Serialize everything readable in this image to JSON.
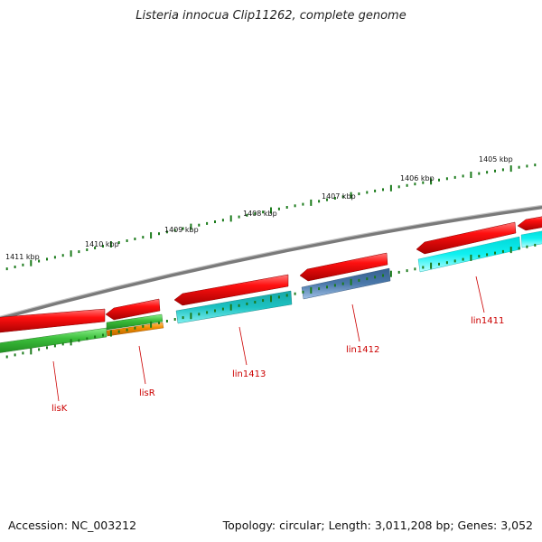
{
  "title": "Listeria innocua Clip11262, complete genome",
  "footer": {
    "accession": "Accession: NC_003212",
    "topology": "Topology: circular; Length: 3,011,208 bp; Genes: 3,052"
  },
  "ruler": {
    "labels": [
      "1405 kbp",
      "1406 kbp",
      "1407 kbp",
      "1408 kbp",
      "1409 kbp",
      "1410 kbp",
      "1411 kbp"
    ]
  },
  "colors": {
    "cds": "#e00000",
    "backbone": "#8a8a8a",
    "tick": "#1a7a1a",
    "label": "#cc0000",
    "lisK": "#3cbf3c",
    "lisR_green": "#3cbf3c",
    "lisR_orange": "#f08c00",
    "lin1413": "#1cc2c2",
    "lin1412": "#4a78aa",
    "lin1411": "#10f0f0"
  },
  "genes": [
    {
      "name": "lisK",
      "color": "lisK"
    },
    {
      "name": "lisR",
      "color": "lisR_orange"
    },
    {
      "name": "lin1413",
      "color": "lin1413"
    },
    {
      "name": "lin1412",
      "color": "lin1412"
    },
    {
      "name": "lin1411",
      "color": "lin1411"
    }
  ]
}
